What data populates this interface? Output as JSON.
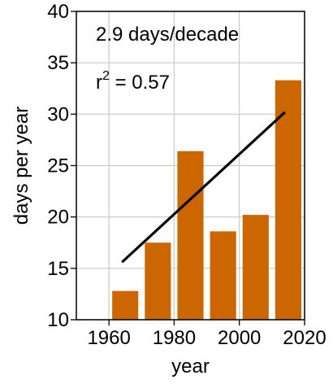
{
  "chart_data": {
    "type": "bar",
    "xlabel": "year",
    "ylabel": "days per year",
    "xlim": [
      1950,
      2020
    ],
    "ylim": [
      10,
      40
    ],
    "x_ticks": [
      1960,
      1980,
      2000,
      2020
    ],
    "y_ticks": [
      10,
      15,
      20,
      25,
      30,
      35,
      40
    ],
    "grid": true,
    "bar_color": "#cc6600",
    "trend_color": "#000000",
    "bars": [
      {
        "x": 1960,
        "y": 12.8
      },
      {
        "x": 1970,
        "y": 17.5
      },
      {
        "x": 1980,
        "y": 26.4
      },
      {
        "x": 1990,
        "y": 18.6
      },
      {
        "x": 2000,
        "y": 20.2
      },
      {
        "x": 2010,
        "y": 33.3
      }
    ],
    "bar_x_start": 1961,
    "bar_x_span": 8,
    "trend_line": {
      "x": [
        1964,
        2014
      ],
      "y": [
        15.6,
        30.2
      ]
    },
    "annotations": {
      "rate": "2.9 days/decade",
      "r2_prefix": "r",
      "r2_exp": "2",
      "r2_value": " = 0.57"
    }
  }
}
